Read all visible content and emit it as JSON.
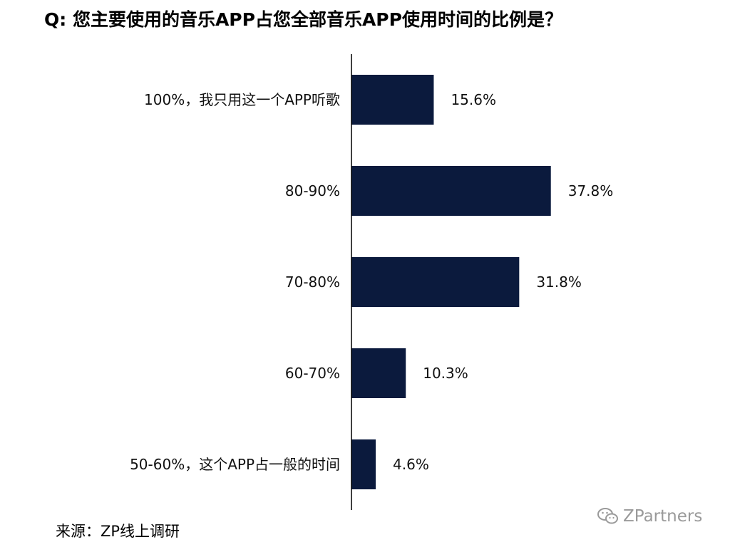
{
  "title": "Q: 您主要使用的音乐APP占您全部音乐APP使用时间的比例是？",
  "source": "来源：ZP线上调研",
  "watermark": {
    "text": "ZPartners",
    "icon": "wechat-icon"
  },
  "colors": {
    "bar": "#0b1a3d",
    "axis": "#000000",
    "text": "#111111"
  },
  "chart_data": {
    "type": "bar",
    "orientation": "horizontal",
    "title": "Q: 您主要使用的音乐APP占您全部音乐APP使用时间的比例是？",
    "categories": [
      "100%，我只用这一个APP听歌",
      "80-90%",
      "70-80%",
      "60-70%",
      "50-60%，这个APP占一般的时间"
    ],
    "values": [
      15.6,
      37.8,
      31.8,
      10.3,
      4.6
    ],
    "value_labels": [
      "15.6%",
      "37.8%",
      "31.8%",
      "10.3%",
      "4.6%"
    ],
    "unit": "%",
    "xlim": [
      0,
      50
    ],
    "grid": false,
    "legend": "none"
  }
}
